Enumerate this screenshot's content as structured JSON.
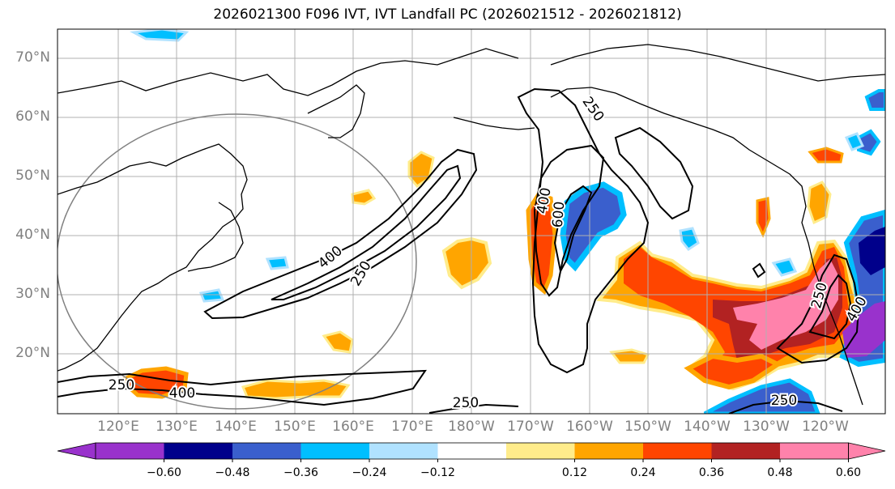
{
  "title": "2026021300 F096 IVT, IVT Landfall PC (2026021512 - 2026021812)",
  "map": {
    "lat_labels": [
      "70°N",
      "60°N",
      "50°N",
      "40°N",
      "30°N",
      "20°N"
    ],
    "lon_labels": [
      "120°E",
      "130°E",
      "140°E",
      "150°E",
      "160°E",
      "170°E",
      "180°W",
      "170°W",
      "160°W",
      "150°W",
      "140°W",
      "130°W",
      "120°W"
    ],
    "contour_labels": [
      {
        "text": "250",
        "name": "contour-label-250-alaska"
      },
      {
        "text": "400",
        "name": "contour-label-400-pacific"
      },
      {
        "text": "250",
        "name": "contour-label-250-pacific"
      },
      {
        "text": "400",
        "name": "contour-label-400-central"
      },
      {
        "text": "600",
        "name": "contour-label-600-central"
      },
      {
        "text": "250",
        "name": "contour-label-250-coast"
      },
      {
        "text": "400",
        "name": "contour-label-400-coast"
      },
      {
        "text": "250",
        "name": "contour-label-250-south-west"
      },
      {
        "text": "400",
        "name": "contour-label-400-south-west"
      },
      {
        "text": "250",
        "name": "contour-label-250-south-central"
      },
      {
        "text": "250",
        "name": "contour-label-250-south-east"
      }
    ]
  },
  "colorbar": {
    "ticks": [
      "−0.60",
      "−0.48",
      "−0.36",
      "−0.24",
      "−0.12",
      "0.12",
      "0.24",
      "0.36",
      "0.48",
      "0.60"
    ],
    "colors": [
      "#9932cc",
      "#00008b",
      "#3a5fcd",
      "#00bfff",
      "#b0e2ff",
      "#ffffff",
      "#ffec8b",
      "#ffa500",
      "#ff4500",
      "#b22222",
      "#ff82ab",
      "#ff82ab"
    ]
  }
}
